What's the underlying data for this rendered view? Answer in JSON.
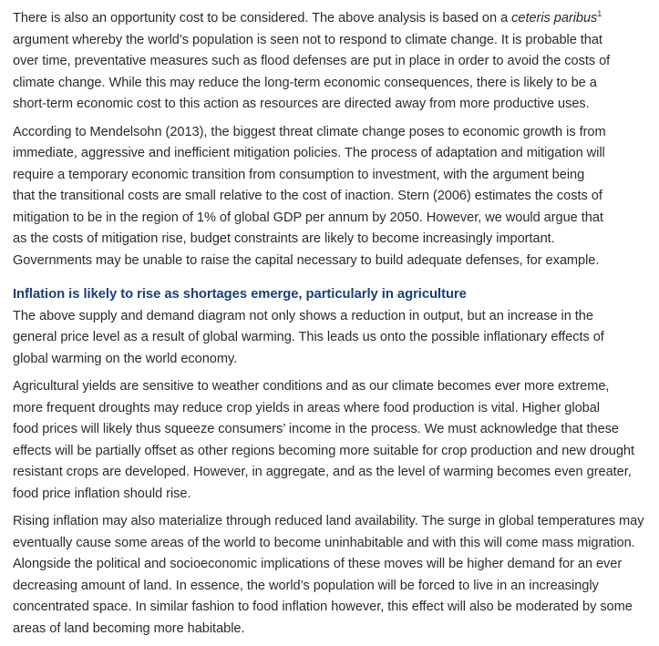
{
  "paragraphs": {
    "p1": {
      "before_italic": "There is also an opportunity cost to be considered. The above analysis is based on a ",
      "italic": "ceteris paribus",
      "footnote_mark": "1",
      "after_italic": "\nargument whereby the world’s population is seen not to respond to climate change. It is probable that\nover time, preventative measures such as flood defenses are put in place in order to avoid the costs of\nclimate change. While this may reduce the long-term economic consequences, there is likely to be a\nshort-term economic cost to this action as resources are directed away from more productive uses."
    },
    "p2": "According to Mendelsohn (2013), the biggest threat climate change poses to economic growth is from\nimmediate, aggressive and inefficient mitigation policies. The process of adaptation and mitigation will\nrequire a temporary economic transition from consumption to investment, with the argument being\nthat the transitional costs are small relative to the cost of inaction. Stern (2006) estimates the costs of\nmitigation to be in the region of 1% of global GDP per annum by 2050.  However, we would argue that\nas the costs of mitigation rise, budget constraints are likely to become increasingly important.\nGovernments may be unable to raise the capital necessary to build adequate defenses, for example.",
    "heading": "Inflation is likely to rise as shortages emerge, particularly in agriculture",
    "p3": "The above supply and demand diagram not only shows a reduction in output, but an increase in the\ngeneral price level as a result of global warming. This leads us onto the possible inflationary effects of\nglobal warming on the world economy.",
    "p4": "Agricultural yields are sensitive to weather conditions and as our climate becomes ever more extreme,\nmore frequent droughts may reduce crop yields in areas where food production is vital. Higher global\nfood prices will likely thus squeeze consumers’ income in the process. We must acknowledge that these\neffects will be partially offset as other regions becoming more suitable for crop production and new drought\nresistant crops are developed. However, in aggregate, and as the level of warming becomes even greater,\nfood price inflation should rise.",
    "p5": "Rising inflation may also materialize through reduced land availability. The surge in global temperatures may\neventually cause some areas of the world to become uninhabitable and with this will come mass migration.\nAlongside the political and socioeconomic implications of these moves will be higher demand for an ever\ndecreasing amount of land. In essence, the world’s population will be forced to live in an increasingly\nconcentrated space. In similar fashion to food inflation however, this effect will also be moderated by some\nareas of land becoming more habitable."
  },
  "colors": {
    "body_text": "#2b2b2b",
    "heading": "#1f3f73",
    "background": "#ffffff"
  }
}
